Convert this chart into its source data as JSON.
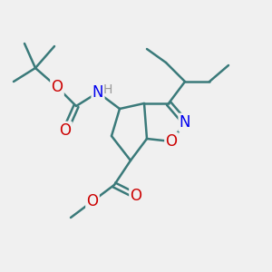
{
  "bg_color": "#f0f0f0",
  "bond_color": "#3a7a7a",
  "atom_colors": {
    "O": "#cc0000",
    "N": "#0000ee",
    "H": "#999999",
    "C": "#3a7a7a"
  },
  "bond_width": 1.8,
  "font_size": 11.5
}
